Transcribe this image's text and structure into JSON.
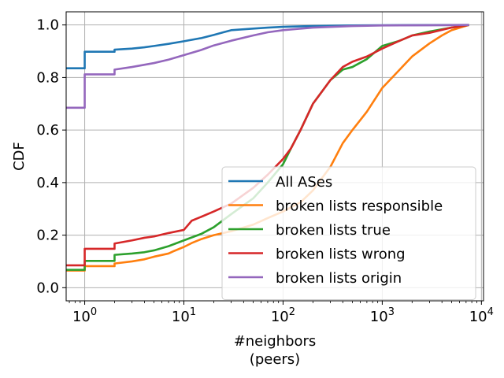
{
  "chart_data": {
    "type": "line",
    "title": "",
    "xlabel": "#neighbors",
    "xlabel_sub": "(peers)",
    "ylabel": "CDF",
    "xscale": "log",
    "xlim": [
      0.65,
      10500
    ],
    "ylim": [
      -0.05,
      1.05
    ],
    "x_ticks": [
      {
        "value": 1,
        "base": "10",
        "exp": "0"
      },
      {
        "value": 10,
        "base": "10",
        "exp": "1"
      },
      {
        "value": 100,
        "base": "10",
        "exp": "2"
      },
      {
        "value": 1000,
        "base": "10",
        "exp": "3"
      },
      {
        "value": 10000,
        "base": "10",
        "exp": "4"
      }
    ],
    "y_ticks": [
      {
        "value": 0.0,
        "label": "0.0"
      },
      {
        "value": 0.2,
        "label": "0.2"
      },
      {
        "value": 0.4,
        "label": "0.4"
      },
      {
        "value": 0.6,
        "label": "0.6"
      },
      {
        "value": 0.8,
        "label": "0.8"
      },
      {
        "value": 1.0,
        "label": "1.0"
      }
    ],
    "grid": true,
    "legend_position": "lower-right",
    "series": [
      {
        "name": "All ASes",
        "color": "#1f77b4",
        "points": [
          [
            0.65,
            0.835
          ],
          [
            1,
            0.835
          ],
          [
            1,
            0.898
          ],
          [
            2,
            0.898
          ],
          [
            2,
            0.906
          ],
          [
            3,
            0.91
          ],
          [
            4,
            0.915
          ],
          [
            5,
            0.92
          ],
          [
            7,
            0.928
          ],
          [
            10,
            0.938
          ],
          [
            15,
            0.95
          ],
          [
            20,
            0.962
          ],
          [
            25,
            0.972
          ],
          [
            30,
            0.98
          ],
          [
            50,
            0.986
          ],
          [
            70,
            0.99
          ],
          [
            100,
            0.993
          ],
          [
            200,
            0.996
          ],
          [
            500,
            0.998
          ],
          [
            1000,
            0.999
          ],
          [
            3000,
            0.9995
          ],
          [
            7500,
            1.0
          ]
        ]
      },
      {
        "name": "broken lists responsible",
        "color": "#ff7f0e",
        "points": [
          [
            0.65,
            0.065
          ],
          [
            1,
            0.065
          ],
          [
            1,
            0.082
          ],
          [
            2,
            0.082
          ],
          [
            2,
            0.092
          ],
          [
            3,
            0.1
          ],
          [
            4,
            0.108
          ],
          [
            5,
            0.118
          ],
          [
            7,
            0.13
          ],
          [
            8,
            0.14
          ],
          [
            10,
            0.155
          ],
          [
            12,
            0.17
          ],
          [
            15,
            0.185
          ],
          [
            20,
            0.2
          ],
          [
            30,
            0.215
          ],
          [
            50,
            0.24
          ],
          [
            70,
            0.265
          ],
          [
            100,
            0.29
          ],
          [
            150,
            0.325
          ],
          [
            200,
            0.37
          ],
          [
            250,
            0.42
          ],
          [
            300,
            0.46
          ],
          [
            400,
            0.55
          ],
          [
            500,
            0.6
          ],
          [
            700,
            0.67
          ],
          [
            1000,
            0.76
          ],
          [
            1500,
            0.83
          ],
          [
            2000,
            0.88
          ],
          [
            3000,
            0.93
          ],
          [
            4000,
            0.96
          ],
          [
            5000,
            0.98
          ],
          [
            7500,
            1.0
          ]
        ]
      },
      {
        "name": "broken lists true",
        "color": "#2ca02c",
        "points": [
          [
            0.65,
            0.068
          ],
          [
            1,
            0.068
          ],
          [
            1,
            0.102
          ],
          [
            2,
            0.102
          ],
          [
            2,
            0.125
          ],
          [
            3,
            0.13
          ],
          [
            4,
            0.135
          ],
          [
            5,
            0.142
          ],
          [
            7,
            0.158
          ],
          [
            10,
            0.18
          ],
          [
            15,
            0.205
          ],
          [
            20,
            0.23
          ],
          [
            30,
            0.28
          ],
          [
            50,
            0.34
          ],
          [
            70,
            0.4
          ],
          [
            100,
            0.47
          ],
          [
            120,
            0.53
          ],
          [
            150,
            0.6
          ],
          [
            200,
            0.7
          ],
          [
            300,
            0.79
          ],
          [
            400,
            0.83
          ],
          [
            500,
            0.84
          ],
          [
            700,
            0.87
          ],
          [
            1000,
            0.92
          ],
          [
            1500,
            0.94
          ],
          [
            2000,
            0.96
          ],
          [
            3000,
            0.975
          ],
          [
            5000,
            0.99
          ],
          [
            7500,
            1.0
          ]
        ]
      },
      {
        "name": "broken lists wrong",
        "color": "#d62728",
        "points": [
          [
            0.65,
            0.085
          ],
          [
            1,
            0.085
          ],
          [
            1,
            0.148
          ],
          [
            2,
            0.148
          ],
          [
            2,
            0.168
          ],
          [
            3,
            0.18
          ],
          [
            4,
            0.19
          ],
          [
            5,
            0.195
          ],
          [
            7,
            0.208
          ],
          [
            10,
            0.22
          ],
          [
            12,
            0.255
          ],
          [
            15,
            0.27
          ],
          [
            20,
            0.29
          ],
          [
            30,
            0.32
          ],
          [
            50,
            0.38
          ],
          [
            70,
            0.43
          ],
          [
            100,
            0.49
          ],
          [
            120,
            0.53
          ],
          [
            150,
            0.6
          ],
          [
            200,
            0.7
          ],
          [
            300,
            0.79
          ],
          [
            400,
            0.84
          ],
          [
            500,
            0.86
          ],
          [
            700,
            0.88
          ],
          [
            1000,
            0.91
          ],
          [
            1500,
            0.94
          ],
          [
            2000,
            0.96
          ],
          [
            3000,
            0.97
          ],
          [
            5000,
            0.99
          ],
          [
            7500,
            1.0
          ]
        ]
      },
      {
        "name": "broken lists origin",
        "color": "#9467bd",
        "points": [
          [
            0.65,
            0.685
          ],
          [
            1,
            0.685
          ],
          [
            1,
            0.812
          ],
          [
            2,
            0.812
          ],
          [
            2,
            0.83
          ],
          [
            3,
            0.84
          ],
          [
            5,
            0.855
          ],
          [
            7,
            0.868
          ],
          [
            10,
            0.885
          ],
          [
            15,
            0.905
          ],
          [
            20,
            0.922
          ],
          [
            30,
            0.94
          ],
          [
            50,
            0.96
          ],
          [
            70,
            0.972
          ],
          [
            100,
            0.98
          ],
          [
            200,
            0.99
          ],
          [
            500,
            0.996
          ],
          [
            1000,
            0.998
          ],
          [
            3000,
            0.999
          ],
          [
            7500,
            1.0
          ]
        ]
      }
    ]
  }
}
